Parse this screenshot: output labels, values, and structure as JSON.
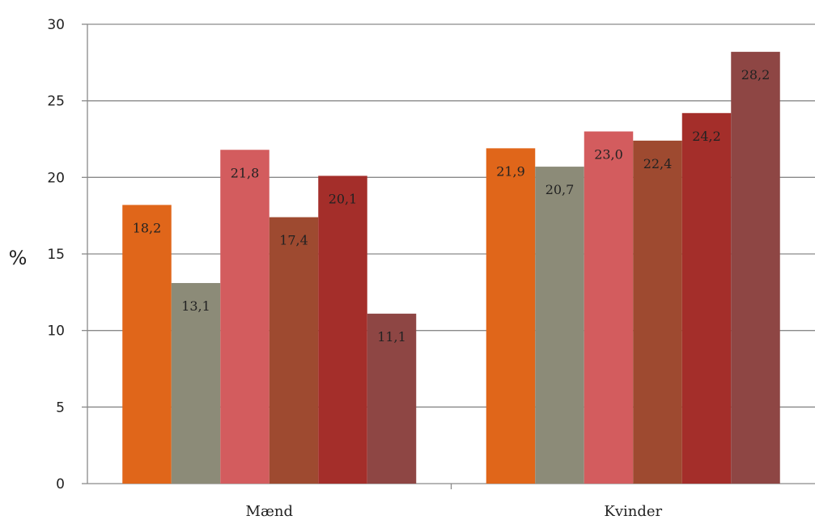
{
  "chart_data": {
    "type": "bar",
    "title": "",
    "xlabel": "",
    "ylabel": "%",
    "ylim": [
      0,
      30
    ],
    "yticks": [
      0,
      5,
      10,
      15,
      20,
      25,
      30
    ],
    "grid": true,
    "categories": [
      "Mænd",
      "Kvinder"
    ],
    "series": [
      {
        "color": "#E0661A",
        "values": [
          18.2,
          21.9
        ],
        "labels": [
          "18,2",
          "21,9"
        ]
      },
      {
        "color": "#8C8B78",
        "values": [
          13.1,
          20.7
        ],
        "labels": [
          "13,1",
          "20,7"
        ]
      },
      {
        "color": "#D35C5E",
        "values": [
          21.8,
          23.0
        ],
        "labels": [
          "21,8",
          "23,0"
        ]
      },
      {
        "color": "#9E4A30",
        "values": [
          17.4,
          22.4
        ],
        "labels": [
          "17,4",
          "22,4"
        ]
      },
      {
        "color": "#A42E2A",
        "values": [
          20.1,
          24.2
        ],
        "labels": [
          "20,1",
          "24,2"
        ]
      },
      {
        "color": "#8E4644",
        "values": [
          11.1,
          28.2
        ],
        "labels": [
          "11,1",
          "28,2"
        ]
      }
    ]
  }
}
